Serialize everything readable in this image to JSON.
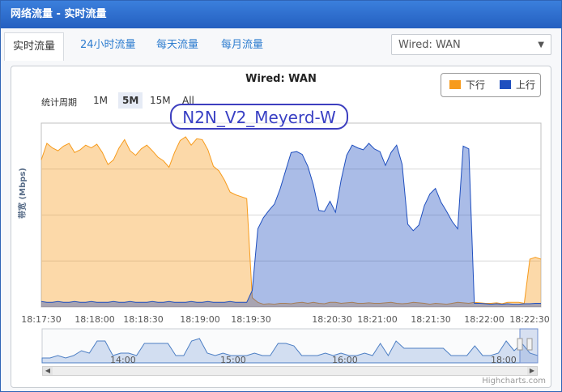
{
  "window": {
    "title": "网络流量 - 实时流量"
  },
  "tabs": [
    {
      "label": "实时流量"
    },
    {
      "label": "24小时流量"
    },
    {
      "label": "每天流量"
    },
    {
      "label": "每月流量"
    }
  ],
  "interface_select": {
    "value": "Wired: WAN"
  },
  "chart": {
    "title": "Wired: WAN",
    "range_label": "统计周期",
    "range_buttons": [
      "1M",
      "5M",
      "15M",
      "All"
    ],
    "selected_range": "5M",
    "watermark": "N2N_V2_Meyerd-W",
    "credit": "Highcharts.com",
    "navigator_ticks": [
      "14:00",
      "15:00",
      "16:00",
      "18:00"
    ],
    "colors": {
      "download": "#f79b1c",
      "upload": "#1f4fbf"
    }
  },
  "chart_data": {
    "type": "area",
    "ylabel": "带宽 (Mbps)",
    "ylim": [
      0,
      20
    ],
    "yticks": [
      5,
      10,
      15
    ],
    "xticks": [
      "18:17:30",
      "18:18:00",
      "18:18:30",
      "18:19:00",
      "18:19:30",
      "18:20:30",
      "18:21:00",
      "18:21:30",
      "18:22:00",
      "18:22:30"
    ],
    "legend": [
      "下行",
      "上行"
    ],
    "legend_position": "top-right",
    "series": [
      {
        "name": "下行",
        "color": "#f79b1c",
        "values": [
          16,
          17.8,
          17.3,
          17,
          17.5,
          17.8,
          16.8,
          17.1,
          17.6,
          17.3,
          17.7,
          16.8,
          15.5,
          16,
          17.3,
          18.2,
          17,
          16.5,
          17.2,
          17.6,
          17,
          16.3,
          15.9,
          15.2,
          16.8,
          18.1,
          18.5,
          17.6,
          18.3,
          18.2,
          17.1,
          15.3,
          14.8,
          13.8,
          12.5,
          12.2,
          12,
          11.8,
          1.0,
          0.5,
          0.3,
          0.35,
          0.3,
          0.4,
          0.4,
          0.35,
          0.45,
          0.5,
          0.4,
          0.5,
          0.4,
          0.35,
          0.5,
          0.5,
          0.4,
          0.45,
          0.5,
          0.4,
          0.4,
          0.45,
          0.4,
          0.4,
          0.45,
          0.5,
          0.4,
          0.35,
          0.4,
          0.5,
          0.45,
          0.4,
          0.3,
          0.4,
          0.35,
          0.3,
          0.4,
          0.5,
          0.45,
          0.4,
          0.5,
          0.45,
          0.4,
          0.4,
          0.45,
          0.35,
          0.5,
          0.5,
          0.5,
          0.4,
          5.2,
          5.4,
          5.2
        ]
      },
      {
        "name": "上行",
        "color": "#1f4fbf",
        "values": [
          0.6,
          0.5,
          0.5,
          0.6,
          0.5,
          0.5,
          0.6,
          0.5,
          0.5,
          0.6,
          0.5,
          0.5,
          0.5,
          0.6,
          0.5,
          0.5,
          0.6,
          0.5,
          0.5,
          0.5,
          0.6,
          0.5,
          0.5,
          0.6,
          0.5,
          0.5,
          0.5,
          0.6,
          0.5,
          0.5,
          0.6,
          0.5,
          0.5,
          0.5,
          0.6,
          0.5,
          0.5,
          0.5,
          1.8,
          8.5,
          9.7,
          10.5,
          11.2,
          12.8,
          14.8,
          16.8,
          16.9,
          16.6,
          15.3,
          13.3,
          10.5,
          10.4,
          11.5,
          10.3,
          13.8,
          16.5,
          17.6,
          17.3,
          17.1,
          17.8,
          17.2,
          16.9,
          15.4,
          16.8,
          17.6,
          15.5,
          9.0,
          8.3,
          8.9,
          11.0,
          12.3,
          12.9,
          11.4,
          10.4,
          9.3,
          8.5,
          17.5,
          17.2,
          0.4,
          0.4,
          0.35,
          0.3,
          0.35,
          0.3,
          0.35,
          0.3,
          0.3,
          0.35,
          0.35,
          0.4,
          0.4
        ]
      }
    ]
  },
  "navigator_data": {
    "values": [
      0.2,
      0.2,
      0.3,
      0.2,
      0.3,
      0.5,
      0.4,
      0.9,
      0.9,
      0.3,
      0.4,
      0.4,
      0.3,
      0.8,
      0.8,
      0.8,
      0.8,
      0.3,
      0.3,
      0.9,
      1.0,
      0.4,
      0.3,
      0.4,
      0.3,
      0.3,
      0.3,
      0.4,
      0.3,
      0.3,
      0.8,
      0.8,
      0.7,
      0.3,
      0.3,
      0.3,
      0.4,
      0.3,
      0.4,
      0.3,
      0.3,
      0.4,
      0.3,
      0.8,
      0.3,
      0.9,
      0.6,
      0.6,
      0.6,
      0.6,
      0.6,
      0.6,
      0.3,
      0.3,
      0.3,
      0.7,
      0.3,
      0.3,
      0.4,
      0.9,
      0.5,
      0.8,
      0.4,
      0.3
    ]
  }
}
